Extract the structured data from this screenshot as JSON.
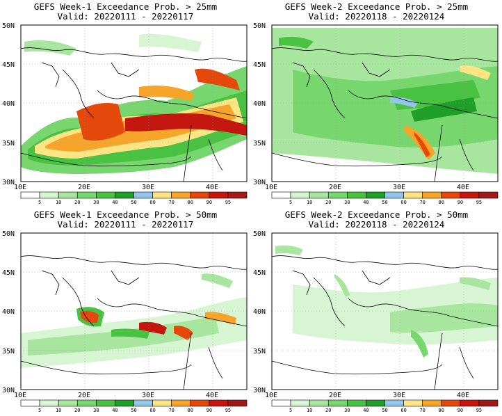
{
  "figure": {
    "colorbar": {
      "levels": [
        "5",
        "10",
        "20",
        "30",
        "40",
        "50",
        "60",
        "70",
        "80",
        "90",
        "95"
      ],
      "colors": [
        "#ffffff",
        "#d7f5d3",
        "#a8e6a0",
        "#78d66e",
        "#49c141",
        "#1f9e2a",
        "#93c7ea",
        "#fde586",
        "#f6a52a",
        "#e4480b",
        "#c4170f",
        "#a11b1b"
      ]
    },
    "axes": {
      "lat_labels": [
        "50N",
        "45N",
        "40N",
        "35N",
        "30N"
      ],
      "lon_labels": [
        "10E",
        "20E",
        "30E",
        "40E"
      ]
    },
    "panels": [
      {
        "title_line1": "GEFS Week-1 Exceedance Prob. > 25mm",
        "title_line2": "Valid: 20220111 - 20220117"
      },
      {
        "title_line1": "GEFS Week-2 Exceedance Prob. > 25mm",
        "title_line2": "Valid: 20220118 - 20220124"
      },
      {
        "title_line1": "GEFS Week-1 Exceedance Prob. > 50mm",
        "title_line2": "Valid: 20220111 - 20220117"
      },
      {
        "title_line1": "GEFS Week-2 Exceedance Prob. > 50mm",
        "title_line2": "Valid: 20220118 - 20220124"
      }
    ]
  }
}
